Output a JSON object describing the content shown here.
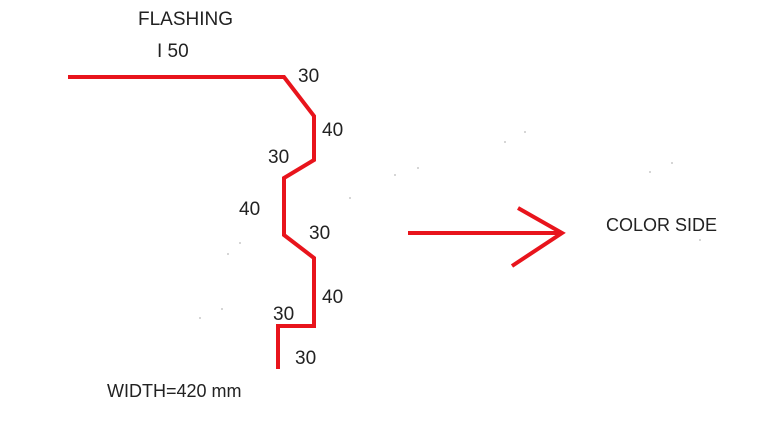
{
  "title": "FLASHING",
  "title_value": "I 50",
  "segment_labels": [
    "30",
    "40",
    "30",
    "40",
    "30",
    "40",
    "30",
    "30"
  ],
  "width_label": "WIDTH=420 mm",
  "side_label": "COLOR SIDE",
  "colors": {
    "line": "#e8141c",
    "text": "#222222",
    "background": "#ffffff"
  }
}
